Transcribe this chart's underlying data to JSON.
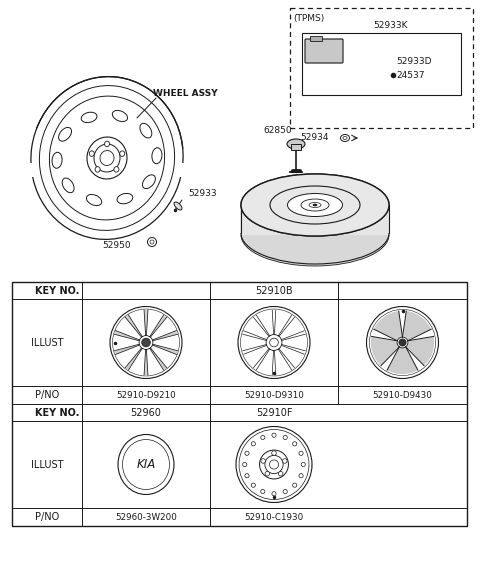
{
  "bg_color": "#ffffff",
  "line_color": "#1a1a1a",
  "parts": {
    "wheel_assy_label": "WHEEL ASSY",
    "p52933": "52933",
    "p52950": "52950",
    "p62850": "62850",
    "p52934": "52934",
    "p52933k": "52933K",
    "p52933d": "52933D",
    "p24537": "24537",
    "tpms_label": "(TPMS)"
  },
  "table": {
    "row1_keyno": "KEY NO.",
    "row1_val": "52910B",
    "row2_label": "ILLUST",
    "row3_label": "P/NO",
    "col1_pno": "52910-D9210",
    "col2_pno": "52910-D9310",
    "col3_pno": "52910-D9430",
    "row4_keyno": "KEY NO.",
    "row4_col1": "52960",
    "row4_col2": "52910F",
    "row5_label": "ILLUST",
    "row6_label": "P/NO",
    "col4_pno": "52960-3W200",
    "col5_pno": "52910-C1930"
  },
  "fig_w": 4.8,
  "fig_h": 5.7,
  "dpi": 100
}
